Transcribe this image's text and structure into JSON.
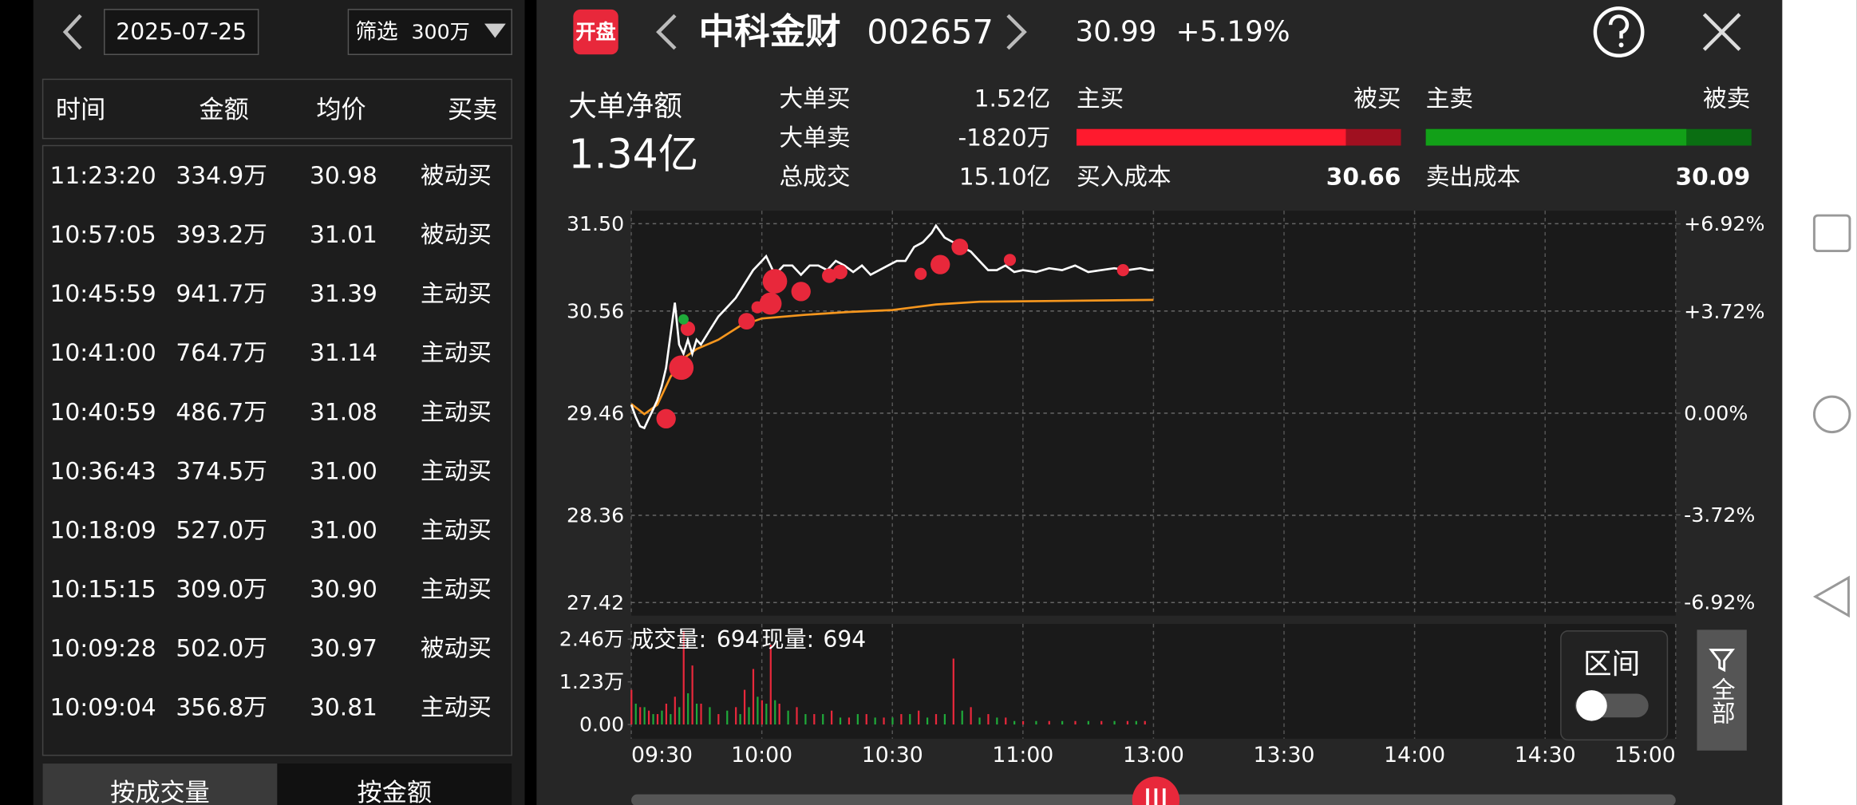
{
  "left_panel": {
    "date": "2025-07-25",
    "filter_label": "筛选",
    "filter_value": "300万",
    "columns": [
      "时间",
      "金额",
      "均价",
      "买卖"
    ],
    "rows": [
      [
        "11:23:20",
        "334.9万",
        "30.98",
        "被动买"
      ],
      [
        "10:57:05",
        "393.2万",
        "31.01",
        "被动买"
      ],
      [
        "10:45:59",
        "941.7万",
        "31.39",
        "主动买"
      ],
      [
        "10:41:00",
        "764.7万",
        "31.14",
        "主动买"
      ],
      [
        "10:40:59",
        "486.7万",
        "31.08",
        "主动买"
      ],
      [
        "10:36:43",
        "374.5万",
        "31.00",
        "主动买"
      ],
      [
        "10:18:09",
        "527.0万",
        "31.00",
        "主动买"
      ],
      [
        "10:15:15",
        "309.0万",
        "30.90",
        "主动买"
      ],
      [
        "10:09:28",
        "502.0万",
        "30.97",
        "被动买"
      ],
      [
        "10:09:04",
        "356.8万",
        "30.81",
        "主动买"
      ]
    ],
    "tabs": [
      "按成交量",
      "按金额"
    ]
  },
  "header": {
    "badge": "开盘",
    "name": "中科金财",
    "code": "002657",
    "price": "30.99",
    "change": "+5.19%"
  },
  "summary": {
    "net_label": "大单净额",
    "net_value": "1.34亿",
    "big_buy_label": "大单买",
    "big_buy": "1.52亿",
    "big_sell_label": "大单卖",
    "big_sell": "-1820万",
    "total_label": "总成交",
    "total": "15.10亿",
    "active_buy": "主买",
    "passive_buy": "被买",
    "active_sell": "主卖",
    "passive_sell": "被卖",
    "active_buy_share": 83,
    "active_sell_share": 80,
    "buy_cost_label": "买入成本",
    "buy_cost": "30.66",
    "sell_cost_label": "卖出成本",
    "sell_cost": "30.09"
  },
  "controls": {
    "range_label": "区间",
    "all_button": "全部"
  },
  "chart_data": [
    {
      "type": "line",
      "xlim": [
        0,
        240
      ],
      "xticks": [
        {
          "value": 0,
          "label": "09:30"
        },
        {
          "value": 30,
          "label": "10:00"
        },
        {
          "value": 60,
          "label": "10:30"
        },
        {
          "value": 90,
          "label": "11:00"
        },
        {
          "value": 120,
          "label": "13:00"
        },
        {
          "value": 150,
          "label": "13:30"
        },
        {
          "value": 180,
          "label": "14:00"
        },
        {
          "value": 210,
          "label": "14:30"
        },
        {
          "value": 240,
          "label": "15:00"
        }
      ],
      "ylim": [
        27.28,
        31.64
      ],
      "yticks": [
        {
          "value": 31.5,
          "label": "31.50"
        },
        30.56,
        29.46,
        28.36,
        27.42
      ],
      "y2lim": [
        -7.4,
        7.4
      ],
      "y2ticks": [
        {
          "value": 6.92,
          "label": "+6.92%"
        },
        {
          "value": 3.72,
          "label": "+3.72%"
        },
        {
          "value": 0,
          "label": "0.00%"
        },
        {
          "value": -3.72,
          "label": "-3.72%"
        },
        {
          "value": -6.92,
          "label": "-6.92%"
        }
      ],
      "grid": true,
      "color": "#ffffff",
      "avg_color": "#f5961e",
      "x": [
        0,
        1,
        2,
        3,
        4,
        5,
        6,
        7,
        8,
        9,
        10,
        11,
        12,
        13,
        14,
        15,
        16,
        18,
        20,
        22,
        24,
        26,
        28,
        30,
        31,
        33,
        35,
        37,
        39,
        41,
        43,
        45,
        47,
        49,
        51,
        53,
        55,
        57,
        59,
        61,
        63,
        65,
        67,
        69,
        70,
        72,
        74,
        76,
        78,
        80,
        82,
        84,
        86,
        88,
        90,
        93,
        96,
        99,
        102,
        105,
        108,
        111,
        114,
        117,
        119,
        120
      ],
      "values": [
        29.55,
        29.42,
        29.32,
        29.3,
        29.4,
        29.5,
        29.6,
        29.75,
        29.95,
        30.3,
        30.65,
        30.2,
        30.1,
        30.25,
        30.1,
        30.25,
        30.2,
        30.35,
        30.5,
        30.6,
        30.7,
        30.85,
        31.0,
        31.1,
        31.15,
        30.95,
        31.05,
        31.05,
        30.95,
        31.05,
        31.05,
        31.0,
        31.1,
        31.05,
        30.98,
        31.05,
        30.95,
        31.0,
        31.05,
        31.1,
        31.1,
        31.25,
        31.3,
        31.4,
        31.48,
        31.35,
        31.3,
        31.25,
        31.2,
        31.1,
        31.0,
        31.0,
        31.05,
        30.98,
        31.0,
        30.98,
        31.02,
        31.0,
        31.05,
        30.98,
        31.0,
        31.02,
        31.0,
        31.02,
        31.0,
        31.0
      ],
      "avg_x": [
        0,
        3,
        6,
        9,
        12,
        15,
        20,
        25,
        30,
        40,
        50,
        60,
        70,
        80,
        100,
        120
      ],
      "avg_values": [
        29.56,
        29.45,
        29.55,
        29.85,
        30.05,
        30.15,
        30.25,
        30.4,
        30.48,
        30.52,
        30.55,
        30.57,
        30.63,
        30.66,
        30.67,
        30.68
      ],
      "orders": {
        "x": [
          8,
          11.5,
          13,
          26.5,
          29,
          32,
          33,
          39,
          45.5,
          48,
          66.5,
          71,
          75.5,
          87,
          113,
          12
        ],
        "values": [
          29.4,
          29.95,
          30.37,
          30.45,
          30.6,
          30.64,
          30.88,
          30.77,
          30.94,
          30.98,
          30.96,
          31.06,
          31.25,
          31.11,
          31.0,
          30.47
        ],
        "amount": [
          300,
          600,
          110,
          180,
          50,
          450,
          600,
          300,
          110,
          110,
          50,
          300,
          180,
          50,
          50,
          20
        ],
        "colors": [
          "#e8283b",
          "#e8283b",
          "#e8283b",
          "#e8283b",
          "#e8283b",
          "#e8283b",
          "#e8283b",
          "#e8283b",
          "#e8283b",
          "#e8283b",
          "#e8283b",
          "#e8283b",
          "#e8283b",
          "#e8283b",
          "#e8283b",
          "#1faa3a"
        ]
      }
    },
    {
      "type": "bar",
      "xlim": [
        0,
        240
      ],
      "ylim": [
        0,
        2.9
      ],
      "yticks": [
        {
          "value": 2.46,
          "label": "2.46万"
        },
        {
          "value": 1.23,
          "label": "1.23万"
        },
        {
          "value": 0,
          "label": "0.00"
        }
      ],
      "volume_label": "成交量:",
      "volume": "694",
      "current_label": "现量:",
      "current": "694",
      "series": [
        {
          "color": "#e8283b",
          "x": [
            0,
            2,
            4,
            6,
            8,
            10,
            12,
            14,
            16,
            20,
            24,
            26,
            28,
            30,
            32,
            34,
            38,
            42,
            46,
            50,
            54,
            58,
            62,
            66,
            70,
            74,
            78,
            82,
            86,
            90,
            96,
            102,
            108,
            114,
            118
          ],
          "values": [
            1.0,
            0.5,
            0.4,
            0.3,
            0.6,
            0.8,
            2.7,
            1.7,
            0.6,
            0.3,
            0.5,
            1.0,
            1.6,
            0.7,
            2.3,
            0.6,
            0.5,
            0.3,
            0.4,
            0.2,
            0.3,
            0.2,
            0.3,
            0.4,
            0.3,
            1.9,
            0.5,
            0.3,
            0.2,
            0.1,
            0.1,
            0.1,
            0.1,
            0.1,
            0.1
          ]
        },
        {
          "color": "#1faa3a",
          "x": [
            1,
            3,
            5,
            7,
            9,
            11,
            13,
            15,
            18,
            22,
            25,
            27,
            29,
            31,
            33,
            36,
            40,
            44,
            48,
            52,
            56,
            60,
            64,
            68,
            72,
            76,
            80,
            84,
            88,
            93,
            99,
            105,
            111,
            116
          ],
          "values": [
            0.6,
            0.5,
            0.3,
            0.4,
            0.3,
            0.5,
            0.9,
            0.6,
            0.5,
            0.4,
            0.3,
            0.5,
            0.8,
            0.6,
            0.7,
            0.4,
            0.3,
            0.3,
            0.2,
            0.3,
            0.2,
            0.2,
            0.3,
            0.2,
            0.3,
            0.4,
            0.2,
            0.2,
            0.1,
            0.1,
            0.1,
            0.1,
            0.1,
            0.1
          ]
        }
      ]
    }
  ]
}
